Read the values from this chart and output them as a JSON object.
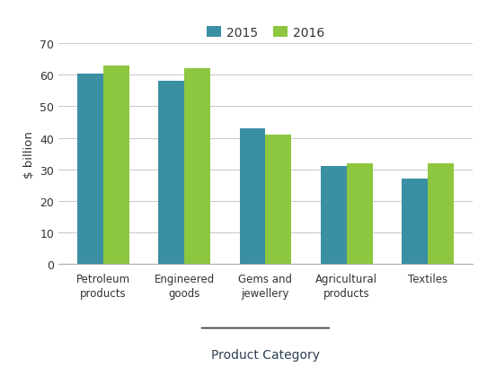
{
  "categories": [
    "Petroleum\nproducts",
    "Engineered\ngoods",
    "Gems and\njewellery",
    "Agricultural\nproducts",
    "Textiles"
  ],
  "values_2015": [
    60.5,
    58,
    43,
    31,
    27
  ],
  "values_2016": [
    63,
    62,
    41,
    32,
    32
  ],
  "color_2015": "#3a8fa3",
  "color_2016": "#8dc63f",
  "ylabel": "$ billion",
  "xlabel": "Product Category",
  "legend_labels": [
    "2015",
    "2016"
  ],
  "ylim": [
    0,
    70
  ],
  "yticks": [
    0,
    10,
    20,
    30,
    40,
    50,
    60,
    70
  ],
  "bar_width": 0.32,
  "background_color": "#ffffff",
  "grid_color": "#cccccc",
  "xlabel_color": "#2e4053",
  "tick_label_color": "#333333",
  "ylabel_color": "#333333",
  "spine_color": "#aaaaaa"
}
